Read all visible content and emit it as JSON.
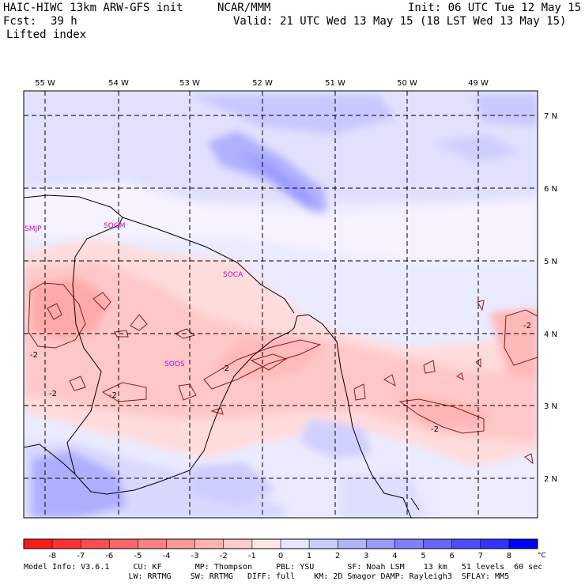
{
  "header": {
    "model": "HAIC-HIWC 13km ARW-GFS init",
    "org": "NCAR/MMM",
    "init": "Init: 06 UTC Tue 12 May 15",
    "fcst_label": "Fcst:",
    "fcst_value": "39 h",
    "valid": "Valid: 21 UTC Wed 13 May 15 (18 LST Wed 13 May 15)",
    "field": "Lifted index"
  },
  "map": {
    "lon_labels": [
      "55 W",
      "54 W",
      "53 W",
      "52 W",
      "51 W",
      "50 W",
      "49 W"
    ],
    "lat_labels": [
      "7 N",
      "6 N",
      "5 N",
      "4 N",
      "3 N",
      "2 N"
    ],
    "stations": [
      "SMJP",
      "SOGM",
      "SOCA",
      "SOOS"
    ],
    "contour_labels": [
      "-2",
      "-2",
      "-2",
      "-2",
      "-2",
      "-2"
    ]
  },
  "colorbar": {
    "ticks": [
      "-8",
      "-7",
      "-6",
      "-5",
      "-4",
      "-3",
      "-2",
      "-1",
      "0",
      "1",
      "2",
      "3",
      "4",
      "5",
      "6",
      "7",
      "8"
    ],
    "unit": "°C",
    "colors": [
      "#ff1a1a",
      "#ff3333",
      "#ff4d4d",
      "#ff6666",
      "#ff8080",
      "#ff9999",
      "#ffb3b3",
      "#ffcccc",
      "#ffe6e6",
      "#e6e6ff",
      "#ccccff",
      "#b3b3ff",
      "#9999ff",
      "#8080ff",
      "#6666ff",
      "#4d4dff",
      "#3333ff",
      "#0000ff"
    ]
  },
  "footer": {
    "line1": "Model Info: V3.6.1     CU: KF       MP: Thompson     PBL: YSU       SF: Noah LSM    13 km   51 levels  60 sec",
    "line2": "                      LW: RRTMG    SW: RRTMG   DIFF: full    KM: 2D Smagor DAMP: Rayleigh3  SFLAY: MM5"
  }
}
